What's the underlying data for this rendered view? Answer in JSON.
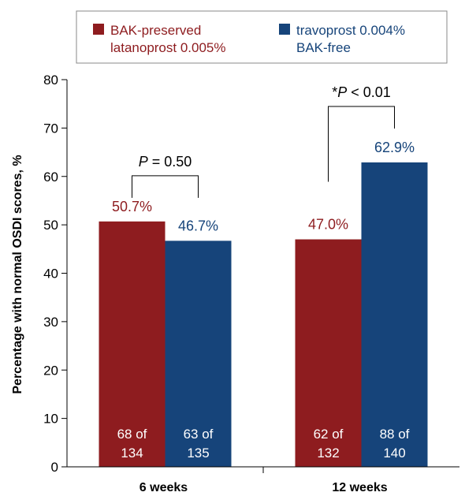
{
  "chart_data": {
    "type": "bar",
    "ylabel": "Percentage with normal OSDI scores, %",
    "xlabel": "",
    "ylim": [
      0,
      80
    ],
    "yticks": [
      0,
      10,
      20,
      30,
      40,
      50,
      60,
      70,
      80
    ],
    "categories": [
      "6 weeks",
      "12 weeks"
    ],
    "series": [
      {
        "name": "BAK-preserved latanoprost 0.005%",
        "legend_lines": [
          "BAK-preserved",
          "latanoprost 0.005%"
        ],
        "color": "#8e1c1f",
        "values": [
          50.7,
          47.0
        ],
        "value_labels": [
          "50.7%",
          "47.0%"
        ],
        "count_labels": [
          [
            "68 of",
            "134"
          ],
          [
            "62 of",
            "132"
          ]
        ]
      },
      {
        "name": "travoprost 0.004% BAK-free",
        "legend_lines": [
          "travoprost 0.004%",
          "BAK-free"
        ],
        "color": "#16447a",
        "values": [
          46.7,
          62.9
        ],
        "value_labels": [
          "46.7%",
          "62.9%"
        ],
        "count_labels": [
          [
            "63 of",
            "135"
          ],
          [
            "88 of",
            "140"
          ]
        ]
      }
    ],
    "comparisons": [
      {
        "category": "6 weeks",
        "p_italic": "P",
        "p_rest": " = 0.50"
      },
      {
        "category": "12 weeks",
        "p_prefix": "*",
        "p_italic": "P",
        "p_rest": " < 0.01"
      }
    ],
    "legend_position": "top"
  }
}
